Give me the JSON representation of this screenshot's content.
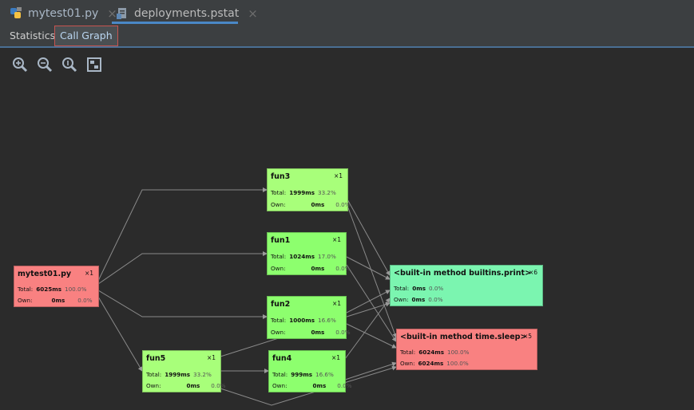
{
  "file_tabs": [
    {
      "label": "mytest01.py",
      "close": "×"
    },
    {
      "label": "deployments.pstat",
      "close": "×"
    }
  ],
  "view_tabs": [
    {
      "label": "Statistics"
    },
    {
      "label": "Call Graph"
    }
  ],
  "toolbar": [
    "zoom-in-icon",
    "zoom-out-icon",
    "actual-size-icon",
    "fit-content-icon"
  ],
  "nodes": {
    "mytest01": {
      "title": "mytest01.py",
      "count": "×1",
      "total_label": "Total:",
      "total_ms": "6025ms",
      "total_pct": "100.0%",
      "own_label": "Own:",
      "own_ms": "0ms",
      "own_pct": "0.0%"
    },
    "fun3": {
      "title": "fun3",
      "count": "×1",
      "total_label": "Total:",
      "total_ms": "1999ms",
      "total_pct": "33.2%",
      "own_label": "Own:",
      "own_ms": "0ms",
      "own_pct": "0.0%"
    },
    "fun1": {
      "title": "fun1",
      "count": "×1",
      "total_label": "Total:",
      "total_ms": "1024ms",
      "total_pct": "17.0%",
      "own_label": "Own:",
      "own_ms": "0ms",
      "own_pct": "0.0%"
    },
    "fun2": {
      "title": "fun2",
      "count": "×1",
      "total_label": "Total:",
      "total_ms": "1000ms",
      "total_pct": "16.6%",
      "own_label": "Own:",
      "own_ms": "0ms",
      "own_pct": "0.0%"
    },
    "fun5": {
      "title": "fun5",
      "count": "×1",
      "total_label": "Total:",
      "total_ms": "1999ms",
      "total_pct": "33.2%",
      "own_label": "Own:",
      "own_ms": "0ms",
      "own_pct": "0.0%"
    },
    "fun4": {
      "title": "fun4",
      "count": "×1",
      "total_label": "Total:",
      "total_ms": "999ms",
      "total_pct": "16.6%",
      "own_label": "Own:",
      "own_ms": "0ms",
      "own_pct": "0.0%"
    },
    "print": {
      "title": "<built-in method builtins.print>",
      "count": "×6",
      "total_label": "Total:",
      "total_ms": "0ms",
      "total_pct": "0.0%",
      "own_label": "Own:",
      "own_ms": "0ms",
      "own_pct": "0.0%"
    },
    "sleep": {
      "title": "<built-in method time.sleep>",
      "count": "×5",
      "total_label": "Total:",
      "total_ms": "6024ms",
      "total_pct": "100.0%",
      "own_label": "Own:",
      "own_ms": "6024ms",
      "own_pct": "100.0%"
    }
  },
  "colors": {
    "background": "#2b2b2b",
    "tabbar": "#3c3f41",
    "node_green": "#8dff6e",
    "node_teal": "#7bf5b0",
    "node_red": "#f98181",
    "edge": "#8a8a8a"
  }
}
